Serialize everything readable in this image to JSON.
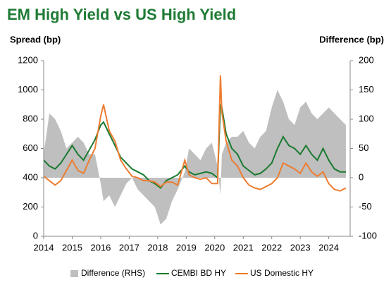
{
  "chart_data": {
    "type": "line",
    "title": "EM High Yield vs US High Yield",
    "y_label": "Spread (bp)",
    "y2_label": "Difference (bp)",
    "x": [
      2014.0,
      2014.2,
      2014.4,
      2014.6,
      2014.8,
      2015.0,
      2015.2,
      2015.4,
      2015.6,
      2015.8,
      2016.0,
      2016.1,
      2016.3,
      2016.5,
      2016.7,
      2016.9,
      2017.1,
      2017.3,
      2017.5,
      2017.7,
      2017.9,
      2018.1,
      2018.3,
      2018.5,
      2018.7,
      2018.95,
      2019.1,
      2019.3,
      2019.5,
      2019.7,
      2019.9,
      2020.1,
      2020.2,
      2020.25,
      2020.4,
      2020.6,
      2020.8,
      2021.0,
      2021.2,
      2021.4,
      2021.6,
      2021.8,
      2022.0,
      2022.2,
      2022.4,
      2022.6,
      2022.8,
      2023.0,
      2023.2,
      2023.4,
      2023.6,
      2023.8,
      2024.0,
      2024.2,
      2024.4,
      2024.6
    ],
    "series": [
      {
        "name": "Difference (RHS)",
        "color": "#bfbfbf",
        "axis": "y2",
        "kind": "area",
        "values": [
          40,
          110,
          100,
          80,
          50,
          60,
          70,
          60,
          40,
          40,
          -10,
          -40,
          -30,
          -50,
          -30,
          -10,
          0,
          -20,
          -30,
          -40,
          -50,
          -80,
          -70,
          -40,
          -20,
          10,
          50,
          40,
          30,
          50,
          60,
          20,
          -30,
          40,
          60,
          70,
          70,
          80,
          60,
          50,
          70,
          80,
          120,
          150,
          130,
          100,
          90,
          120,
          130,
          110,
          100,
          110,
          120,
          110,
          100,
          90
        ]
      },
      {
        "name": "CEMBI BD HY",
        "color": "#1a7a30",
        "values": [
          520,
          480,
          460,
          500,
          560,
          620,
          560,
          520,
          590,
          660,
          760,
          780,
          700,
          620,
          540,
          500,
          460,
          440,
          420,
          380,
          360,
          330,
          380,
          400,
          420,
          480,
          440,
          420,
          430,
          440,
          430,
          400,
          900,
          880,
          700,
          600,
          560,
          480,
          450,
          420,
          430,
          460,
          500,
          600,
          680,
          620,
          600,
          560,
          620,
          560,
          520,
          600,
          520,
          460,
          440,
          440
        ]
      },
      {
        "name": "US Domestic HY",
        "color": "#ed7d31",
        "values": [
          410,
          380,
          350,
          380,
          450,
          520,
          450,
          430,
          520,
          600,
          820,
          900,
          720,
          650,
          520,
          460,
          410,
          400,
          380,
          380,
          370,
          340,
          370,
          370,
          350,
          520,
          420,
          400,
          390,
          400,
          360,
          360,
          1100,
          850,
          650,
          520,
          480,
          400,
          350,
          330,
          320,
          340,
          360,
          400,
          500,
          480,
          460,
          430,
          500,
          440,
          410,
          440,
          360,
          320,
          310,
          330
        ]
      }
    ],
    "xlim": [
      2014,
      2024.75
    ],
    "xticks": [
      2014,
      2015,
      2016,
      2017,
      2018,
      2019,
      2020,
      2021,
      2022,
      2023,
      2024
    ],
    "ylim": [
      0,
      1200
    ],
    "yticks": [
      0,
      200,
      400,
      600,
      800,
      1000,
      1200
    ],
    "y2lim": [
      -100,
      200
    ],
    "y2ticks": [
      -100,
      -50,
      0,
      50,
      100,
      150,
      200
    ],
    "legend": "bottom"
  }
}
